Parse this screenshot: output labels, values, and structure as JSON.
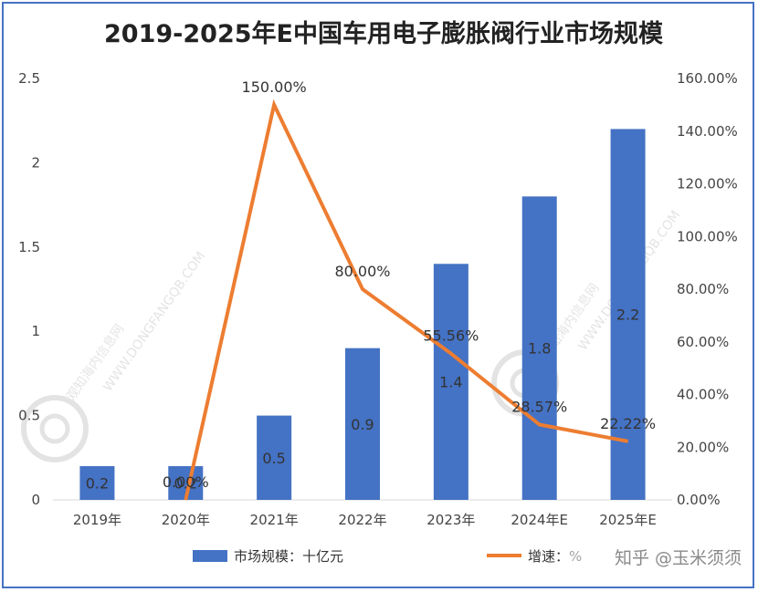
{
  "chart_data": {
    "type": "bar+line",
    "title": "2019-2025年E中国车用电子膨胀阀行业市场规模",
    "categories": [
      "2019年",
      "2020年",
      "2021年",
      "2022年",
      "2023年",
      "2024年E",
      "2025年E"
    ],
    "series": [
      {
        "name": "市场规模：十亿元",
        "type": "bar",
        "axis": "left",
        "values": [
          0.2,
          0.2,
          0.5,
          0.9,
          1.4,
          1.8,
          2.2
        ],
        "labels": [
          "0.2",
          "0.2",
          "0.5",
          "0.9",
          "1.4",
          "1.8",
          "2.2"
        ],
        "color": "#4472c4"
      },
      {
        "name": "增速：%",
        "type": "line",
        "axis": "right",
        "values": [
          null,
          0.0,
          150.0,
          80.0,
          55.56,
          28.57,
          22.22
        ],
        "labels": [
          "",
          "0.00%",
          "150.00%",
          "80.00%",
          "55.56%",
          "28.57%",
          "22.22%"
        ],
        "color": "#ed7d31"
      }
    ],
    "y_left": {
      "range": [
        0,
        2.5
      ],
      "ticks": [
        "0",
        "0.5",
        "1",
        "1.5",
        "2",
        "2.5"
      ]
    },
    "y_right": {
      "range": [
        0,
        160
      ],
      "ticks": [
        "0.00%",
        "20.00%",
        "40.00%",
        "60.00%",
        "80.00%",
        "100.00%",
        "120.00%",
        "140.00%",
        "160.00%"
      ]
    },
    "grid": false,
    "legend_position": "bottom"
  },
  "watermark": {
    "text": "知乎 @玉米须须",
    "stamp_text": "观知海内信息网",
    "stamp_sub": "WWW.DONGFANGQB.COM"
  }
}
